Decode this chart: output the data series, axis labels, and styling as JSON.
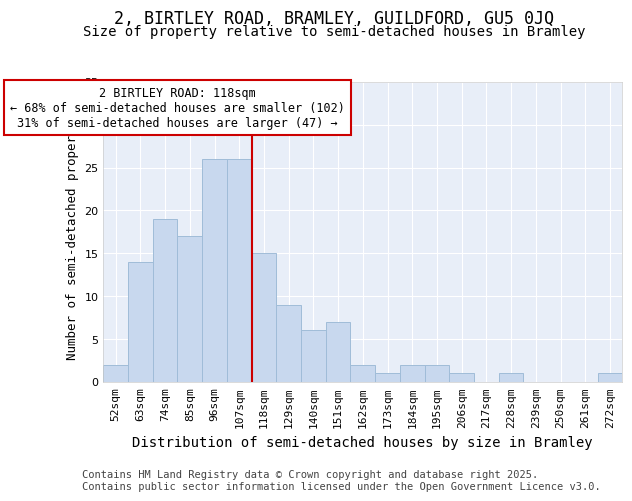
{
  "title": "2, BIRTLEY ROAD, BRAMLEY, GUILDFORD, GU5 0JQ",
  "subtitle": "Size of property relative to semi-detached houses in Bramley",
  "xlabel": "Distribution of semi-detached houses by size in Bramley",
  "ylabel": "Number of semi-detached properties",
  "categories": [
    "52sqm",
    "63sqm",
    "74sqm",
    "85sqm",
    "96sqm",
    "107sqm",
    "118sqm",
    "129sqm",
    "140sqm",
    "151sqm",
    "162sqm",
    "173sqm",
    "184sqm",
    "195sqm",
    "206sqm",
    "217sqm",
    "228sqm",
    "239sqm",
    "250sqm",
    "261sqm",
    "272sqm"
  ],
  "values": [
    2,
    14,
    19,
    17,
    26,
    26,
    15,
    9,
    6,
    7,
    2,
    1,
    2,
    2,
    1,
    0,
    1,
    0,
    0,
    0,
    1
  ],
  "bar_color": "#c8d8ee",
  "bar_edge_color": "#a0bcd8",
  "vline_color": "#cc0000",
  "vline_x": 6.5,
  "annotation_text": "2 BIRTLEY ROAD: 118sqm\n← 68% of semi-detached houses are smaller (102)\n31% of semi-detached houses are larger (47) →",
  "annotation_box_facecolor": "#ffffff",
  "annotation_box_edgecolor": "#cc0000",
  "ylim": [
    0,
    35
  ],
  "yticks": [
    0,
    5,
    10,
    15,
    20,
    25,
    30,
    35
  ],
  "figure_background": "#ffffff",
  "axes_background": "#e8eef8",
  "grid_color": "#ffffff",
  "footer_text": "Contains HM Land Registry data © Crown copyright and database right 2025.\nContains public sector information licensed under the Open Government Licence v3.0.",
  "title_fontsize": 12,
  "subtitle_fontsize": 10,
  "xlabel_fontsize": 10,
  "ylabel_fontsize": 9,
  "tick_fontsize": 8,
  "annotation_fontsize": 8.5,
  "footer_fontsize": 7.5
}
